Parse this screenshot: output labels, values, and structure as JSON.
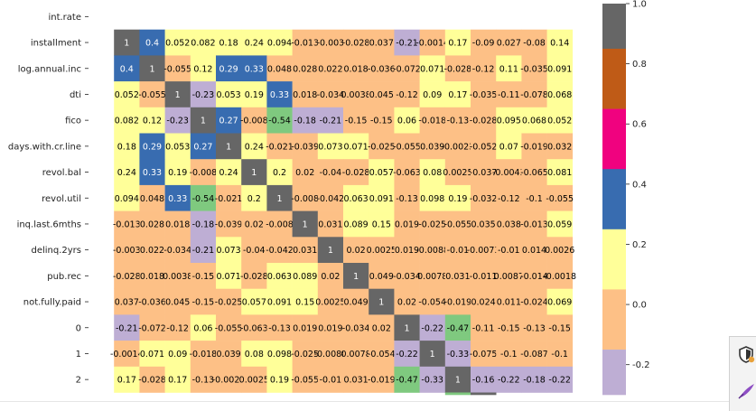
{
  "chart_data": {
    "type": "heatmap",
    "row_labels": [
      "int.rate",
      "installment",
      "log.annual.inc",
      "dti",
      "fico",
      "days.with.cr.line",
      "revol.bal",
      "revol.util",
      "inq.last.6mths",
      "delinq.2yrs",
      "pub.rec",
      "not.fully.paid",
      "0",
      "1",
      "2"
    ],
    "visible_columns": 18,
    "cells": [
      [
        null,
        null,
        null,
        null,
        null,
        null,
        null,
        null,
        null,
        null,
        null,
        null,
        null,
        null,
        null,
        null,
        null,
        null
      ],
      [
        null,
        1,
        0.4,
        0.052,
        0.082,
        0.18,
        0.24,
        0.094,
        -0.013,
        -0.003,
        -0.028,
        0.037,
        -0.21,
        -0.0014,
        0.17,
        -0.09,
        0.027,
        -0.08,
        0.14
      ],
      [
        null,
        0.4,
        1,
        -0.055,
        0.12,
        0.29,
        0.33,
        0.048,
        0.028,
        0.022,
        0.018,
        -0.036,
        -0.072,
        0.071,
        -0.028,
        -0.12,
        0.11,
        -0.035,
        0.091
      ],
      [
        null,
        0.052,
        -0.055,
        1,
        -0.23,
        0.053,
        0.19,
        0.33,
        0.018,
        -0.034,
        0.0038,
        0.045,
        -0.12,
        0.09,
        0.17,
        -0.035,
        -0.11,
        -0.078,
        0.068
      ],
      [
        null,
        0.082,
        0.12,
        -0.23,
        1,
        0.27,
        -0.008,
        -0.54,
        -0.18,
        -0.21,
        -0.15,
        -0.15,
        0.06,
        -0.018,
        -0.13,
        -0.028,
        0.095,
        0.068,
        0.052
      ],
      [
        null,
        0.18,
        0.29,
        0.053,
        0.27,
        1,
        0.24,
        -0.021,
        -0.039,
        0.073,
        0.071,
        -0.025,
        -0.055,
        0.039,
        -0.0023,
        -0.052,
        0.07,
        -0.019,
        0.032
      ],
      [
        null,
        0.24,
        0.33,
        0.19,
        -0.008,
        0.24,
        1,
        0.2,
        0.02,
        -0.04,
        -0.028,
        0.057,
        -0.063,
        0.08,
        0.0025,
        -0.037,
        -0.0043,
        -0.065,
        0.081
      ],
      [
        null,
        0.094,
        0.048,
        0.33,
        -0.54,
        -0.021,
        0.2,
        1,
        -0.008,
        -0.042,
        0.063,
        0.091,
        -0.13,
        0.098,
        0.19,
        -0.032,
        -0.12,
        -0.1,
        -0.055
      ],
      [
        null,
        -0.013,
        0.028,
        0.018,
        -0.18,
        -0.039,
        0.02,
        -0.008,
        1,
        0.031,
        0.089,
        0.15,
        0.019,
        -0.025,
        -0.055,
        0.035,
        0.038,
        -0.013,
        0.059
      ],
      [
        null,
        -0.003,
        0.022,
        -0.034,
        -0.21,
        0.073,
        -0.04,
        -0.042,
        0.031,
        1,
        0.02,
        0.0025,
        0.019,
        -0.0088,
        -0.01,
        -0.0073,
        -0.01,
        0.014,
        0.0026
      ],
      [
        null,
        -0.028,
        0.018,
        0.0038,
        -0.15,
        0.071,
        -0.028,
        0.063,
        0.089,
        0.02,
        1,
        0.049,
        -0.034,
        0.0078,
        0.031,
        -0.011,
        0.0087,
        -0.014,
        -0.0018
      ],
      [
        null,
        0.037,
        -0.036,
        0.045,
        -0.15,
        -0.025,
        0.057,
        0.091,
        0.15,
        0.0025,
        0.049,
        1,
        0.02,
        -0.054,
        -0.019,
        0.024,
        0.011,
        -0.024,
        0.069
      ],
      [
        null,
        -0.21,
        -0.072,
        -0.12,
        0.06,
        -0.055,
        -0.063,
        -0.13,
        0.019,
        0.019,
        -0.034,
        0.02,
        1,
        -0.22,
        -0.47,
        -0.11,
        -0.15,
        -0.13,
        -0.15
      ],
      [
        null,
        -0.0014,
        0.071,
        0.09,
        -0.018,
        0.039,
        0.08,
        0.098,
        -0.025,
        -0.0088,
        0.0078,
        -0.054,
        -0.22,
        1,
        -0.33,
        -0.075,
        -0.1,
        -0.087,
        -0.1
      ],
      [
        null,
        0.17,
        -0.028,
        0.17,
        -0.13,
        -0.0023,
        0.0025,
        0.19,
        -0.055,
        -0.01,
        0.031,
        -0.019,
        -0.47,
        -0.33,
        1,
        -0.16,
        -0.22,
        -0.18,
        -0.22
      ],
      [
        null,
        null,
        null,
        null,
        null,
        null,
        null,
        null,
        null,
        null,
        null,
        null,
        null,
        null,
        -0.47,
        1,
        null,
        null,
        null
      ]
    ],
    "cell_labels": [
      [
        "",
        "",
        "",
        "",
        "",
        "",
        "",
        "",
        "",
        "",
        "",
        "",
        "",
        "",
        "",
        "",
        "",
        ""
      ],
      [
        "",
        "1",
        "0.4",
        "0.052",
        "0.082",
        "0.18",
        "0.24",
        "0.094",
        "-0.013",
        "-0.003",
        "-0.028",
        "0.037",
        "-0.21",
        "-0.0014",
        "0.17",
        "-0.09",
        "0.027",
        "-0.08",
        "0.14"
      ],
      [
        "",
        "0.4",
        "1",
        "-0.055",
        "0.12",
        "0.29",
        "0.33",
        "0.048",
        "0.028",
        "0.022",
        "0.018",
        "-0.036",
        "-0.072",
        "0.071",
        "-0.028",
        "-0.12",
        "0.11",
        "-0.035",
        "0.091"
      ],
      [
        "",
        "0.052",
        "-0.055",
        "1",
        "-0.23",
        "0.053",
        "0.19",
        "0.33",
        "0.018",
        "-0.034",
        "0.0038",
        "0.045",
        "-0.12",
        "0.09",
        "0.17",
        "-0.035",
        "-0.11",
        "-0.078",
        "0.068"
      ],
      [
        "",
        "0.082",
        "0.12",
        "-0.23",
        "1",
        "0.27",
        "-0.008",
        "-0.54",
        "-0.18",
        "-0.21",
        "-0.15",
        "-0.15",
        "0.06",
        "-0.018",
        "-0.13",
        "-0.028",
        "0.095",
        "0.068",
        "0.052"
      ],
      [
        "",
        "0.18",
        "0.29",
        "0.053",
        "0.27",
        "1",
        "0.24",
        "-0.021",
        "-0.039",
        "0.073",
        "0.071",
        "-0.025",
        "-0.055",
        "0.039",
        "-0.0023",
        "-0.052",
        "0.07",
        "-0.019",
        "0.032"
      ],
      [
        "",
        "0.24",
        "0.33",
        "0.19",
        "-0.008",
        "0.24",
        "1",
        "0.2",
        "0.02",
        "-0.04",
        "-0.028",
        "0.057",
        "-0.063",
        "0.08",
        "0.0025",
        "-0.037",
        "-0.0043",
        "-0.065",
        "0.081"
      ],
      [
        "",
        "0.094",
        "0.048",
        "0.33",
        "-0.54",
        "-0.021",
        "0.2",
        "1",
        "-0.008",
        "-0.042",
        "0.063",
        "0.091",
        "-0.13",
        "0.098",
        "0.19",
        "-0.032",
        "-0.12",
        "-0.1",
        "-0.055"
      ],
      [
        "",
        "-0.013",
        "0.028",
        "0.018",
        "-0.18",
        "-0.039",
        "0.02",
        "-0.008",
        "1",
        "0.031",
        "0.089",
        "0.15",
        "0.019",
        "-0.025",
        "-0.055",
        "0.035",
        "0.038",
        "-0.013",
        "0.059"
      ],
      [
        "",
        "-0.003",
        "0.022",
        "-0.034",
        "-0.21",
        "0.073",
        "-0.04",
        "-0.042",
        "0.031",
        "1",
        "0.02",
        "0.0025",
        "0.019",
        "-0.0088",
        "-0.01",
        "-0.0073",
        "-0.01",
        "0.014",
        "0.0026"
      ],
      [
        "",
        "-0.028",
        "0.018",
        "0.0038",
        "-0.15",
        "0.071",
        "-0.028",
        "0.063",
        "0.089",
        "0.02",
        "1",
        "0.049",
        "-0.034",
        "0.0078",
        "0.031",
        "-0.011",
        "0.0087",
        "-0.014",
        "-0.0018"
      ],
      [
        "",
        "0.037",
        "-0.036",
        "0.045",
        "-0.15",
        "-0.025",
        "0.057",
        "0.091",
        "0.15",
        "0.0025",
        "0.049",
        "1",
        "0.02",
        "-0.054",
        "-0.019",
        "0.024",
        "0.011",
        "-0.024",
        "0.069"
      ],
      [
        "",
        "-0.21",
        "-0.072",
        "-0.12",
        "0.06",
        "-0.055",
        "-0.063",
        "-0.13",
        "0.019",
        "0.019",
        "-0.034",
        "0.02",
        "1",
        "-0.22",
        "-0.47",
        "-0.11",
        "-0.15",
        "-0.13",
        "-0.15"
      ],
      [
        "",
        "-0.0014",
        "0.071",
        "0.09",
        "-0.018",
        "0.039",
        "0.08",
        "0.098",
        "-0.025",
        "-0.0088",
        "0.0078",
        "-0.054",
        "-0.22",
        "1",
        "-0.33",
        "-0.075",
        "-0.1",
        "-0.087",
        "-0.1"
      ],
      [
        "",
        "0.17",
        "-0.028",
        "0.17",
        "-0.13",
        "-0.0023",
        "0.0025",
        "0.19",
        "-0.055",
        "-0.01",
        "0.031",
        "-0.019",
        "-0.47",
        "-0.33",
        "1",
        "-0.16",
        "-0.22",
        "-0.18",
        "-0.22"
      ],
      [
        "",
        "",
        "",
        "",
        "",
        "",
        "",
        "",
        "",
        "",
        "",
        "",
        "",
        "",
        "",
        "",
        "",
        ""
      ]
    ],
    "colorbar": {
      "ticks": [
        "1.0",
        "0.8",
        "0.6",
        "0.4",
        "0.2",
        "0.0",
        "-0.2"
      ],
      "range": [
        -0.3,
        1.0
      ],
      "bands": [
        {
          "from": 0.85,
          "to": 1.0,
          "color": "#666666"
        },
        {
          "from": 0.65,
          "to": 0.85,
          "color": "#bf5b17"
        },
        {
          "from": 0.45,
          "to": 0.65,
          "color": "#f0027f"
        },
        {
          "from": 0.25,
          "to": 0.45,
          "color": "#386cb0"
        },
        {
          "from": 0.05,
          "to": 0.25,
          "color": "#ffff99"
        },
        {
          "from": -0.15,
          "to": 0.05,
          "color": "#fdc086"
        },
        {
          "from": -0.35,
          "to": -0.15,
          "color": "#beaed4"
        },
        {
          "from": -0.55,
          "to": -0.35,
          "color": "#7fc97f"
        }
      ]
    },
    "colormap": "Accent"
  },
  "side_panel": {
    "buttons": [
      {
        "name": "shield-badge-icon"
      },
      {
        "name": "quill-pen-icon"
      }
    ]
  }
}
